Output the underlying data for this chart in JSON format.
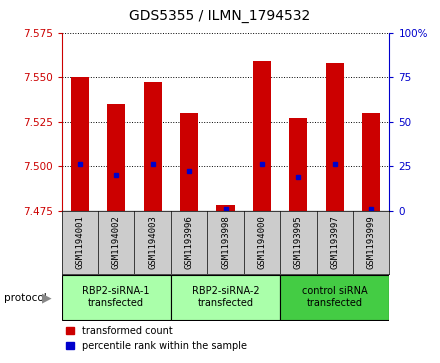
{
  "title": "GDS5355 / ILMN_1794532",
  "samples": [
    "GSM1194001",
    "GSM1194002",
    "GSM1194003",
    "GSM1193996",
    "GSM1193998",
    "GSM1194000",
    "GSM1193995",
    "GSM1193997",
    "GSM1193999"
  ],
  "bar_bottoms": [
    7.475,
    7.475,
    7.475,
    7.475,
    7.475,
    7.475,
    7.475,
    7.475,
    7.475
  ],
  "bar_tops": [
    7.55,
    7.535,
    7.547,
    7.53,
    7.478,
    7.559,
    7.527,
    7.558,
    7.53
  ],
  "blue_values": [
    7.501,
    7.495,
    7.501,
    7.497,
    7.476,
    7.501,
    7.494,
    7.501,
    7.476
  ],
  "ylim_left": [
    7.475,
    7.575
  ],
  "ylim_right": [
    0,
    100
  ],
  "yticks_left": [
    7.475,
    7.5,
    7.525,
    7.55,
    7.575
  ],
  "yticks_right": [
    0,
    25,
    50,
    75,
    100
  ],
  "groups": [
    {
      "label": "RBP2-siRNA-1\ntransfected",
      "indices": [
        0,
        1,
        2
      ],
      "color": "#aaffaa"
    },
    {
      "label": "RBP2-siRNA-2\ntransfected",
      "indices": [
        3,
        4,
        5
      ],
      "color": "#aaffaa"
    },
    {
      "label": "control siRNA\ntransfected",
      "indices": [
        6,
        7,
        8
      ],
      "color": "#44cc44"
    }
  ],
  "bar_color": "#cc0000",
  "blue_color": "#0000cc",
  "left_tick_color": "#cc0000",
  "right_tick_color": "#0000cc",
  "sample_bg_color": "#cccccc",
  "title_fontsize": 10
}
